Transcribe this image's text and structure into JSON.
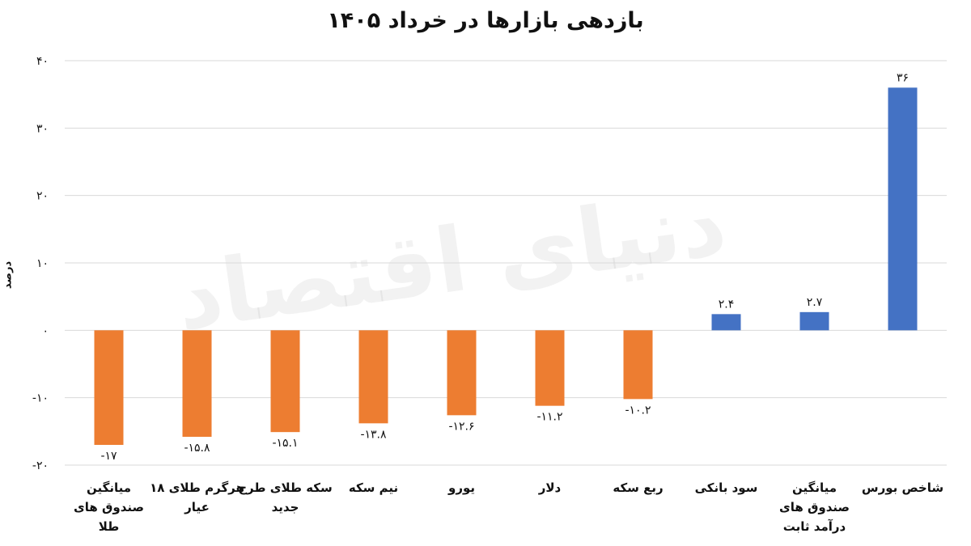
{
  "chart_data": {
    "type": "bar",
    "title": "بازدهی بازارها در خرداد ۱۴۰۵",
    "xlabel": "",
    "ylabel": "درصد",
    "ylim": [
      -20,
      40
    ],
    "yticks": [
      -20,
      -10,
      0,
      10,
      20,
      30,
      40
    ],
    "ytick_labels": [
      "-۲۰",
      "-۱۰",
      "۰",
      "۱۰",
      "۲۰",
      "۳۰",
      "۴۰"
    ],
    "grid": true,
    "categories": [
      "میانگین صندوق های طلا",
      "هرگرم طلای ۱۸ عیار",
      "سکه طلای طرح جدید",
      "نیم سکه",
      "یورو",
      "دلار",
      "ربع سکه",
      "سود بانکی",
      "میانگین صندوق های درآمد ثابت",
      "شاخص بورس"
    ],
    "category_lines": [
      [
        "میانگین",
        "صندوق های",
        "طلا"
      ],
      [
        "هرگرم طلای ۱۸",
        "عیار"
      ],
      [
        "سکه طلای طرح",
        "جدید"
      ],
      [
        "نیم سکه"
      ],
      [
        "یورو"
      ],
      [
        "دلار"
      ],
      [
        "ربع سکه"
      ],
      [
        "سود بانکی"
      ],
      [
        "میانگین",
        "صندوق های",
        "درآمد ثابت"
      ],
      [
        "شاخص بورس"
      ]
    ],
    "values": [
      -17,
      -15.8,
      -15.1,
      -13.8,
      -12.6,
      -11.2,
      -10.2,
      2.4,
      2.7,
      36
    ],
    "value_labels": [
      "-۱۷",
      "-۱۵.۸",
      "-۱۵.۱",
      "-۱۳.۸",
      "-۱۲.۶",
      "-۱۱.۲",
      "-۱۰.۲",
      "۲.۴",
      "۲.۷",
      "۳۶"
    ],
    "colors": {
      "positive": "#4472C4",
      "negative": "#ED7D31",
      "grid": "#d9d9d9",
      "text": "#111111"
    },
    "watermark": "دنیای اقتصاد"
  }
}
